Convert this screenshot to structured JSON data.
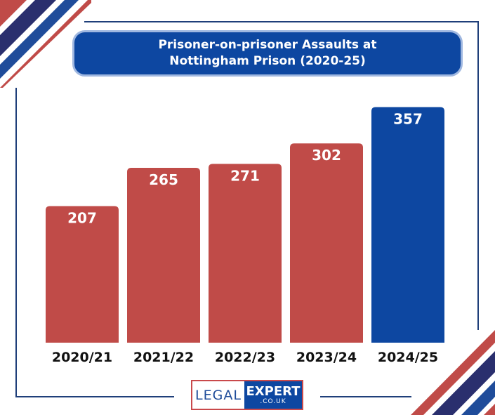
{
  "colors": {
    "bar_default": "#c04b48",
    "bar_highlight": "#0d47a1",
    "title_bg": "#0d47a1",
    "frame": "#1f3f7a"
  },
  "chart_data": {
    "type": "bar",
    "title": "Prisoner-on-prisoner Assaults at Nottingham Prison (2020-25)",
    "title_lines": [
      "Prisoner-on-prisoner Assaults at",
      "Nottingham Prison (2020-25)"
    ],
    "categories": [
      "2020/21",
      "2021/22",
      "2022/23",
      "2023/24",
      "2024/25"
    ],
    "values": [
      207,
      265,
      271,
      302,
      357
    ],
    "highlight_index": 4,
    "ylim": [
      0,
      365
    ],
    "grid": false,
    "legend": "none"
  },
  "logo": {
    "left_text": "LEGAL",
    "right_text": "EXPERT",
    "sub_text": ".CO.UK"
  }
}
